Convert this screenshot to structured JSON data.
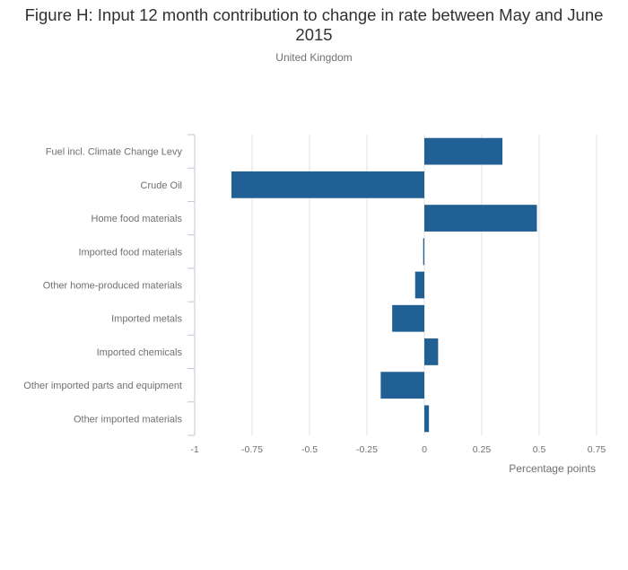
{
  "chart_data": {
    "type": "bar",
    "orientation": "horizontal",
    "title": "Figure H: Input 12 month contribution to change in rate between May and June 2015",
    "subtitle": "United Kingdom",
    "categories": [
      "Fuel incl. Climate Change Levy",
      "Crude Oil",
      "Home food materials",
      "Imported food materials",
      "Other home-produced materials",
      "Imported metals",
      "Imported chemicals",
      "Other imported parts and equipment",
      "Other imported materials"
    ],
    "values": [
      0.34,
      -0.84,
      0.49,
      -0.005,
      -0.04,
      -0.14,
      0.06,
      -0.19,
      0.02
    ],
    "xlabel": "Percentage points",
    "ylabel": "",
    "xlim": [
      -1,
      0.75
    ],
    "xticks": [
      -1,
      -0.75,
      -0.5,
      -0.25,
      0,
      0.25,
      0.5,
      0.75
    ],
    "xtick_labels": [
      "-1",
      "-0.75",
      "-0.5",
      "-0.25",
      "0",
      "0.25",
      "0.5",
      "0.75"
    ],
    "grid": true,
    "bar_color": "#206095"
  }
}
